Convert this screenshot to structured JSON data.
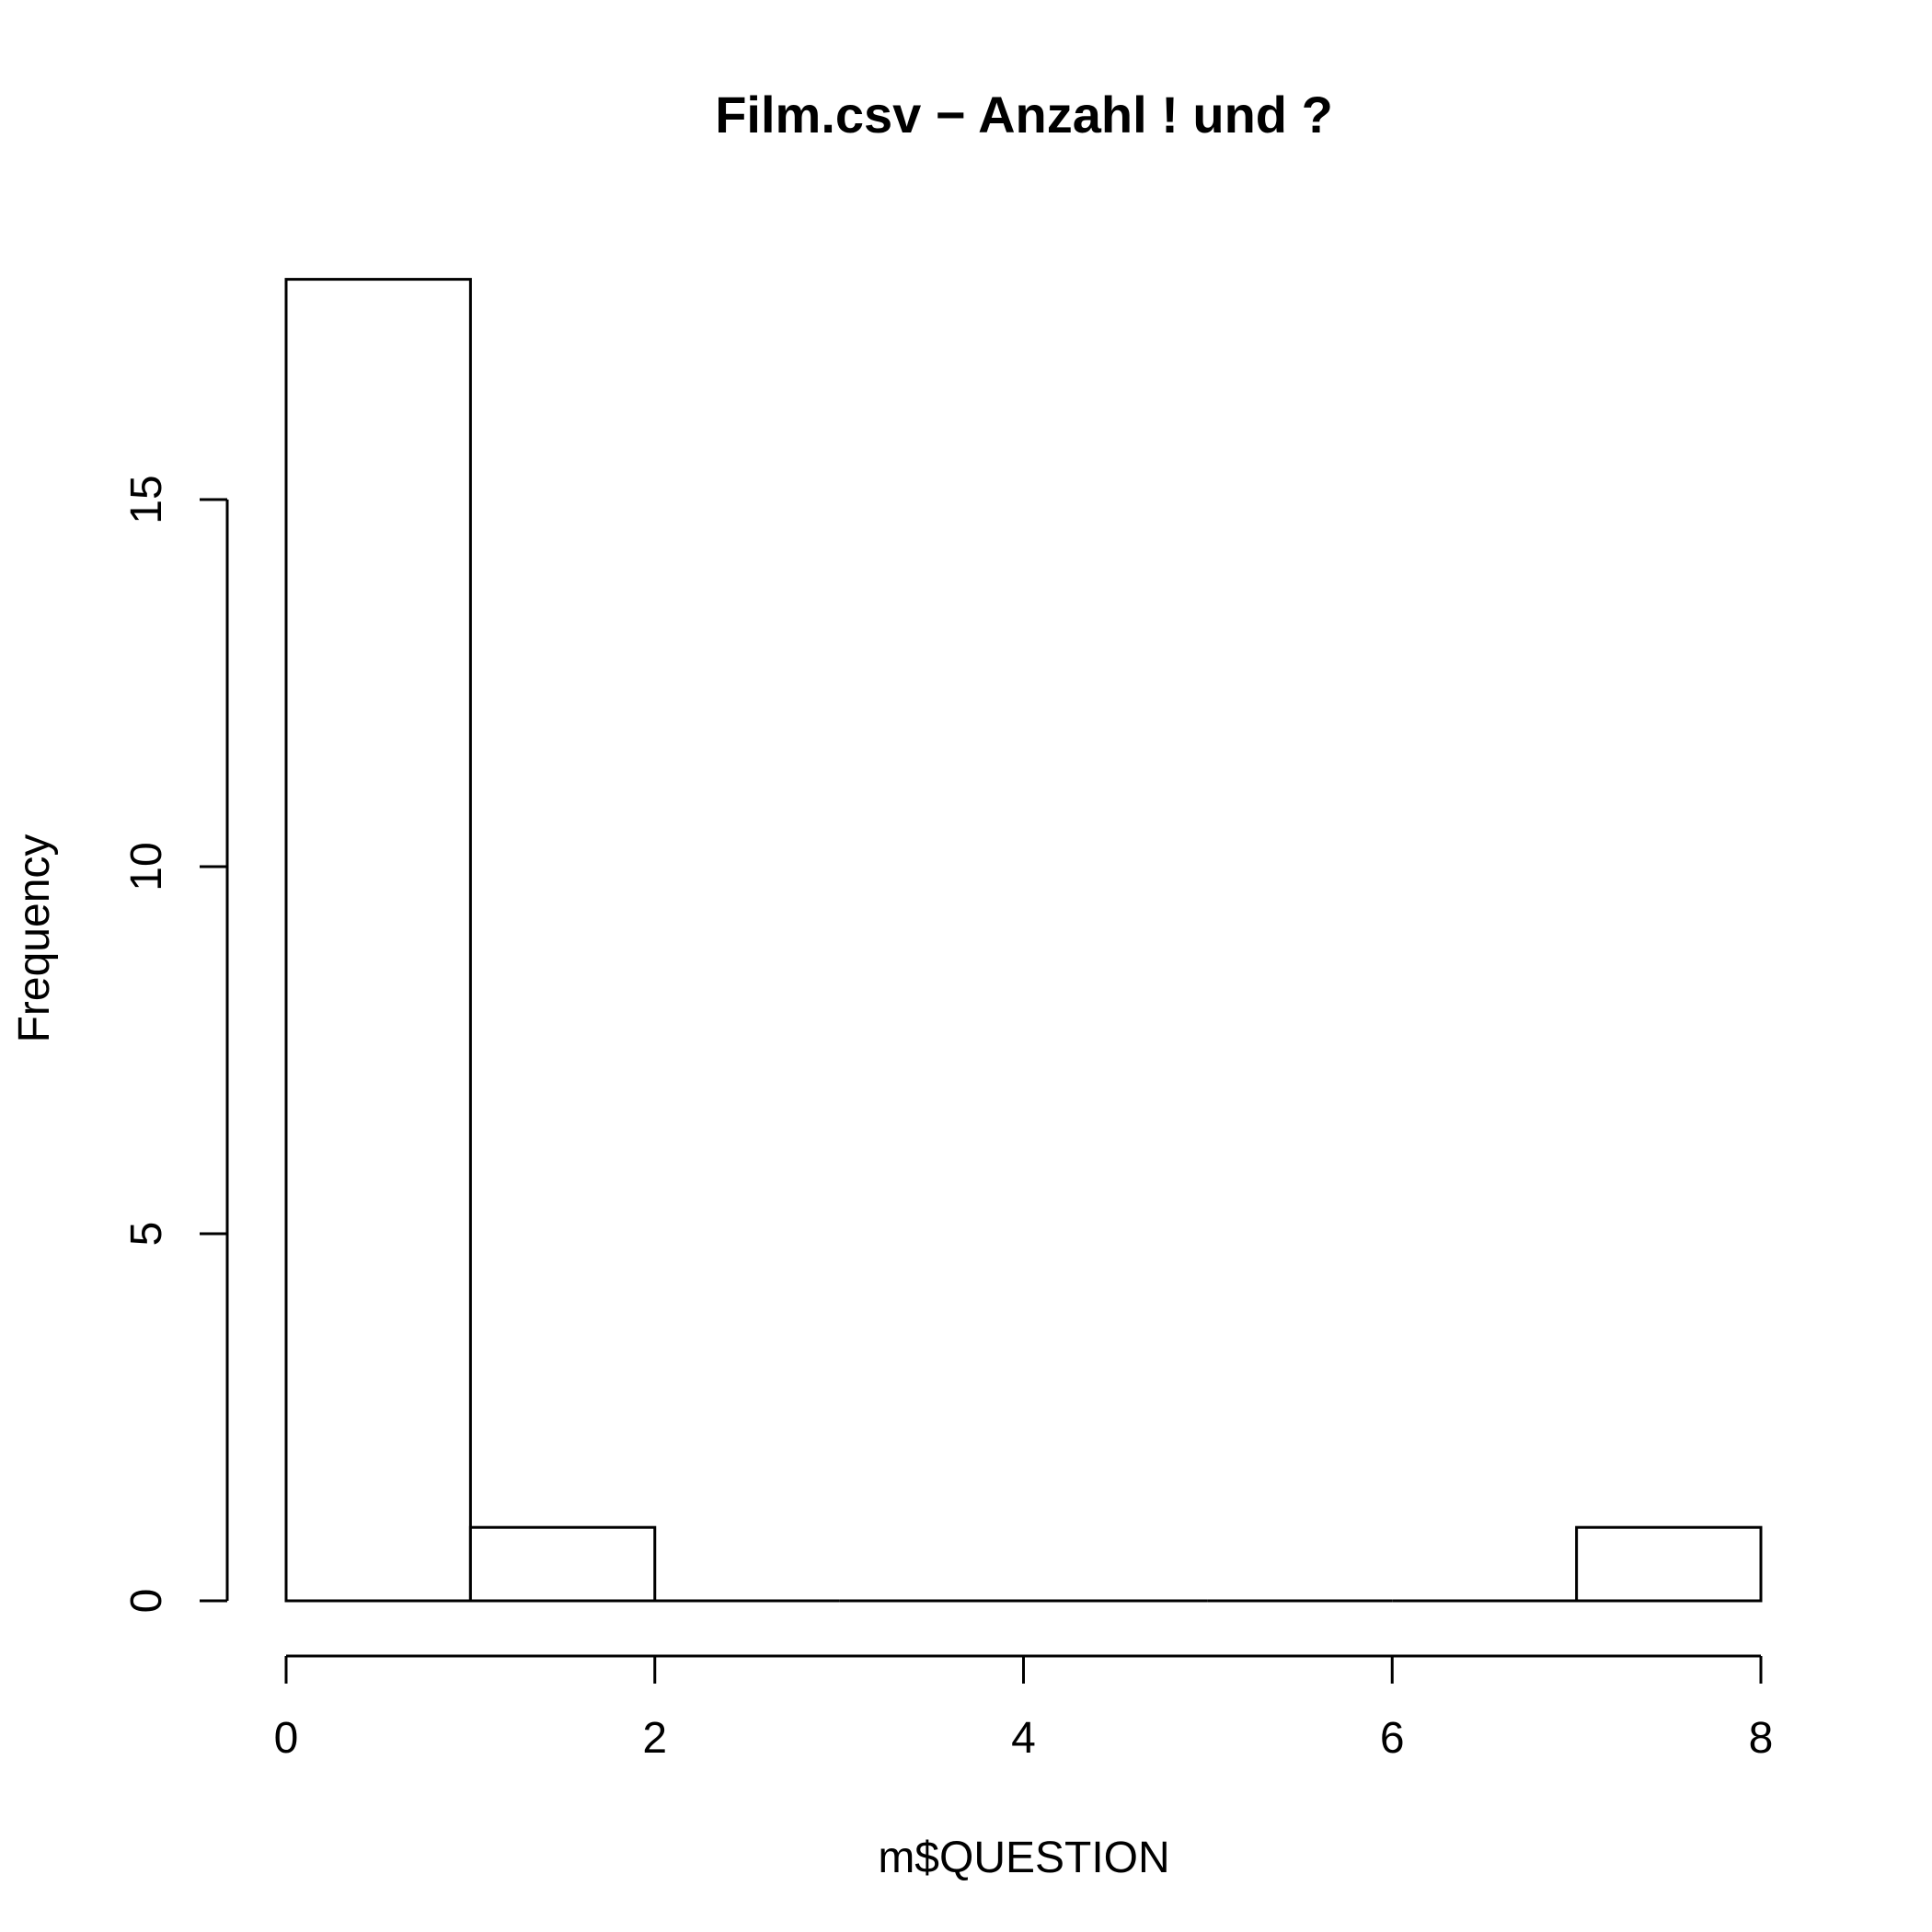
{
  "chart_data": {
    "type": "bar",
    "title": "Film.csv − Anzahl ! und ?",
    "xlabel": "m$QUESTION",
    "ylabel": "Frequency",
    "bins": [
      {
        "start": 0,
        "end": 1,
        "value": 18
      },
      {
        "start": 1,
        "end": 2,
        "value": 1
      },
      {
        "start": 2,
        "end": 3,
        "value": 0
      },
      {
        "start": 3,
        "end": 4,
        "value": 0
      },
      {
        "start": 4,
        "end": 5,
        "value": 0
      },
      {
        "start": 5,
        "end": 6,
        "value": 0
      },
      {
        "start": 6,
        "end": 7,
        "value": 0
      },
      {
        "start": 7,
        "end": 8,
        "value": 1
      }
    ],
    "xlim": [
      0,
      8
    ],
    "ylim": [
      0,
      18
    ],
    "xticks": [
      0,
      2,
      4,
      6,
      8
    ],
    "yticks": [
      0,
      5,
      10,
      15
    ],
    "grid": false,
    "colors": {
      "fill": "#ffffff",
      "stroke": "#000000"
    }
  }
}
